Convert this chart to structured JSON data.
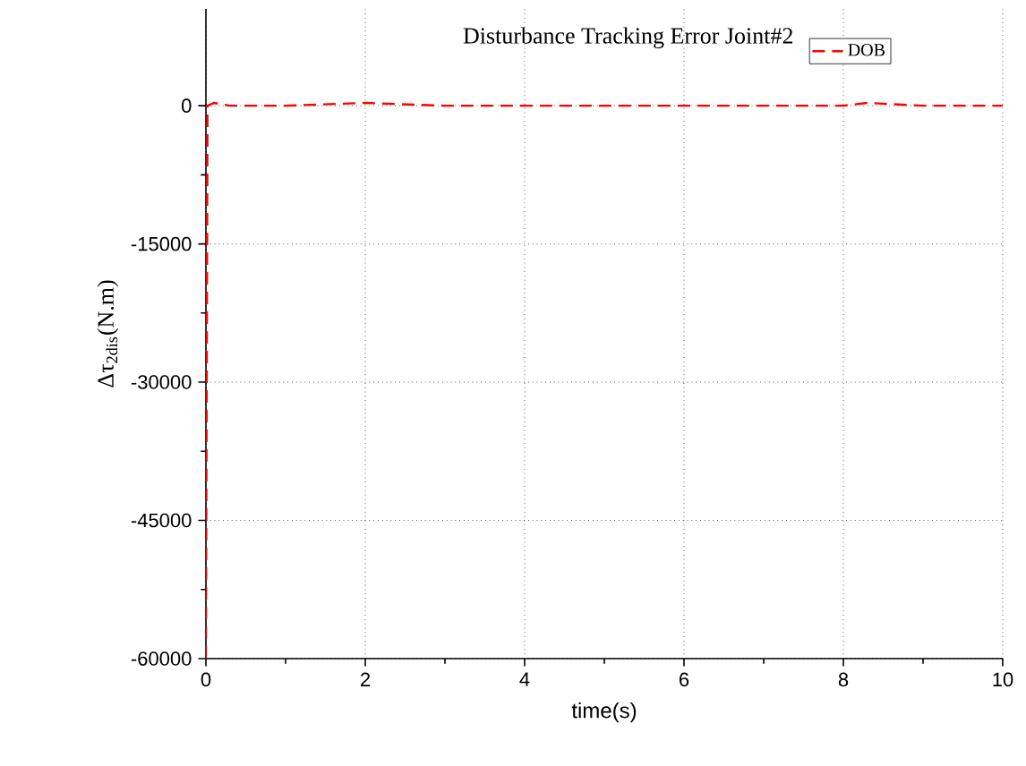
{
  "chart_data": {
    "type": "line",
    "title": "Disturbance Tracking Error Joint#2",
    "xlabel": "time(s)",
    "ylabel": "Δτ$_{2dis}$(N.m)",
    "series": [
      {
        "name": "DOB",
        "color": "#ff0000",
        "x": [
          0,
          0.02,
          0.1,
          0.3,
          1,
          2,
          3,
          5,
          8,
          8.3,
          9,
          10
        ],
        "values": [
          -60000,
          0,
          300,
          0,
          0,
          300,
          0,
          0,
          0,
          300,
          0,
          0
        ]
      }
    ],
    "xlim": [
      0,
      10
    ],
    "ylim": [
      -60000,
      10500
    ],
    "xticks": [
      0,
      2,
      4,
      6,
      8,
      10
    ],
    "yticks": [
      -60000,
      -45000,
      -30000,
      -15000,
      0
    ],
    "grid": true,
    "legend": "top right",
    "line_style": "dashed",
    "marker": "none"
  }
}
